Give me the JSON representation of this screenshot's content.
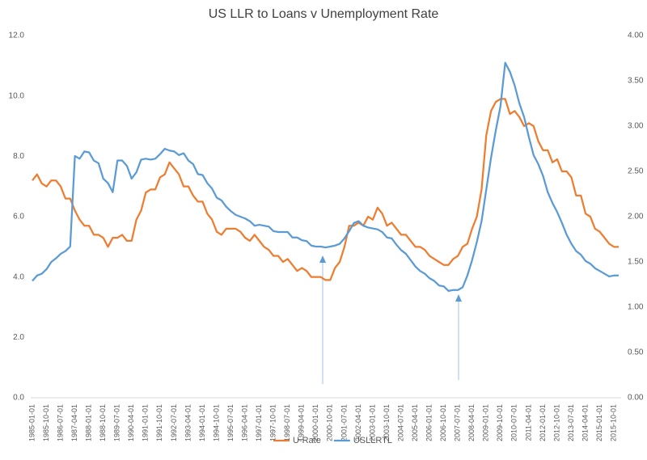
{
  "chart_data": {
    "type": "line",
    "title": "US LLR to Loans v Unemployment Rate",
    "categories": [
      "1985-01-01",
      null,
      null,
      "1985-10-01",
      null,
      null,
      "1986-07-01",
      null,
      null,
      "1987-04-01",
      null,
      null,
      "1988-01-01",
      null,
      null,
      "1988-10-01",
      null,
      null,
      "1989-07-01",
      null,
      null,
      "1990-04-01",
      null,
      null,
      "1991-01-01",
      null,
      null,
      "1991-10-01",
      null,
      null,
      "1992-07-01",
      null,
      null,
      "1993-04-01",
      null,
      null,
      "1994-01-01",
      null,
      null,
      "1994-10-01",
      null,
      null,
      "1995-07-01",
      null,
      null,
      "1996-04-01",
      null,
      null,
      "1997-01-01",
      null,
      null,
      "1997-10-01",
      null,
      null,
      "1998-07-01",
      null,
      null,
      "1999-04-01",
      null,
      null,
      "2000-01-01",
      null,
      null,
      "2000-10-01",
      null,
      null,
      "2001-07-01",
      null,
      null,
      "2002-04-01",
      null,
      null,
      "2003-01-01",
      null,
      null,
      "2003-10-01",
      null,
      null,
      "2004-07-01",
      null,
      null,
      "2005-04-01",
      null,
      null,
      "2006-01-01",
      null,
      null,
      "2006-10-01",
      null,
      null,
      "2007-07-01",
      null,
      null,
      "2008-04-01",
      null,
      null,
      "2009-01-01",
      null,
      null,
      "2009-10-01",
      null,
      null,
      "2010-07-01",
      null,
      null,
      "2011-04-01",
      null,
      null,
      "2012-01-01",
      null,
      null,
      "2012-10-01",
      null,
      null,
      "2013-07-01",
      null,
      null,
      "2014-04-01",
      null,
      null,
      "2015-01-01",
      null,
      null,
      "2015-10-01",
      null
    ],
    "series": [
      {
        "name": "U-Rate",
        "color": "#ed7d31",
        "values": [
          7.2,
          7.4,
          7.1,
          7.0,
          7.2,
          7.2,
          7.0,
          6.6,
          6.6,
          6.2,
          5.9,
          5.7,
          5.7,
          5.4,
          5.4,
          5.3,
          5.0,
          5.3,
          5.3,
          5.4,
          5.2,
          5.2,
          5.9,
          6.2,
          6.8,
          6.9,
          6.9,
          7.3,
          7.4,
          7.8,
          7.6,
          7.4,
          7.0,
          7.0,
          6.7,
          6.5,
          6.5,
          6.1,
          5.9,
          5.5,
          5.4,
          5.6,
          5.6,
          5.6,
          5.5,
          5.3,
          5.2,
          5.4,
          5.2,
          5.0,
          4.9,
          4.7,
          4.7,
          4.5,
          4.6,
          4.4,
          4.2,
          4.3,
          4.2,
          4.0,
          4.0,
          4.0,
          3.9,
          3.9,
          4.3,
          4.5,
          5.0,
          5.7,
          5.7,
          5.8,
          5.7,
          6.0,
          5.9,
          6.3,
          6.1,
          5.7,
          5.8,
          5.6,
          5.4,
          5.4,
          5.2,
          5.0,
          5.0,
          4.9,
          4.7,
          4.6,
          4.5,
          4.4,
          4.4,
          4.6,
          4.7,
          5.0,
          5.1,
          5.6,
          6.0,
          6.9,
          8.7,
          9.5,
          9.8,
          9.9,
          9.9,
          9.4,
          9.5,
          9.3,
          9.0,
          9.1,
          9.0,
          8.5,
          8.2,
          8.2,
          7.8,
          7.9,
          7.5,
          7.5,
          7.3,
          6.7,
          6.7,
          6.1,
          6.0,
          5.6,
          5.5,
          5.3,
          5.1,
          5.0,
          5.0
        ]
      },
      {
        "name": "USLLRTL",
        "color": "#5b9bd5",
        "axis": "y2",
        "values": [
          1.29,
          1.35,
          1.37,
          1.42,
          1.5,
          1.54,
          1.59,
          1.62,
          1.67,
          2.67,
          2.64,
          2.72,
          2.71,
          2.62,
          2.59,
          2.42,
          2.37,
          2.27,
          2.62,
          2.62,
          2.56,
          2.42,
          2.49,
          2.63,
          2.64,
          2.63,
          2.64,
          2.69,
          2.75,
          2.73,
          2.72,
          2.68,
          2.7,
          2.62,
          2.58,
          2.47,
          2.46,
          2.37,
          2.31,
          2.21,
          2.18,
          2.11,
          2.06,
          2.02,
          2.0,
          1.98,
          1.95,
          1.9,
          1.91,
          1.9,
          1.89,
          1.84,
          1.83,
          1.83,
          1.83,
          1.77,
          1.77,
          1.74,
          1.73,
          1.68,
          1.67,
          1.67,
          1.66,
          1.67,
          1.68,
          1.7,
          1.76,
          1.84,
          1.93,
          1.95,
          1.9,
          1.88,
          1.87,
          1.86,
          1.83,
          1.77,
          1.76,
          1.69,
          1.63,
          1.59,
          1.52,
          1.45,
          1.4,
          1.37,
          1.32,
          1.29,
          1.24,
          1.23,
          1.18,
          1.19,
          1.19,
          1.22,
          1.35,
          1.52,
          1.72,
          1.95,
          2.3,
          2.65,
          2.95,
          3.22,
          3.7,
          3.6,
          3.45,
          3.25,
          3.1,
          2.88,
          2.68,
          2.58,
          2.45,
          2.27,
          2.15,
          2.05,
          1.93,
          1.8,
          1.7,
          1.62,
          1.58,
          1.51,
          1.48,
          1.43,
          1.4,
          1.37,
          1.34,
          1.35,
          1.35
        ]
      }
    ],
    "ylim": [
      0,
      12
    ],
    "yticks": [
      {
        "value": 0,
        "label": "0.0"
      },
      {
        "value": 2,
        "label": "2.0"
      },
      {
        "value": 4,
        "label": "4.0"
      },
      {
        "value": 6,
        "label": "6.0"
      },
      {
        "value": 8,
        "label": "8.0"
      },
      {
        "value": 10,
        "label": "10.0"
      },
      {
        "value": 12,
        "label": "12.0"
      }
    ],
    "y2lim": [
      0,
      4
    ],
    "y2ticks": [
      {
        "value": 0,
        "label": "0.00"
      },
      {
        "value": 0.5,
        "label": "0.50"
      },
      {
        "value": 1,
        "label": "1.00"
      },
      {
        "value": 1.5,
        "label": "1.50"
      },
      {
        "value": 2,
        "label": "2.00"
      },
      {
        "value": 2.5,
        "label": "2.50"
      },
      {
        "value": 3,
        "label": "3.00"
      },
      {
        "value": 3.5,
        "label": "3.50"
      },
      {
        "value": 4,
        "label": "4.00"
      }
    ],
    "grid": false,
    "legend": "bottom"
  }
}
